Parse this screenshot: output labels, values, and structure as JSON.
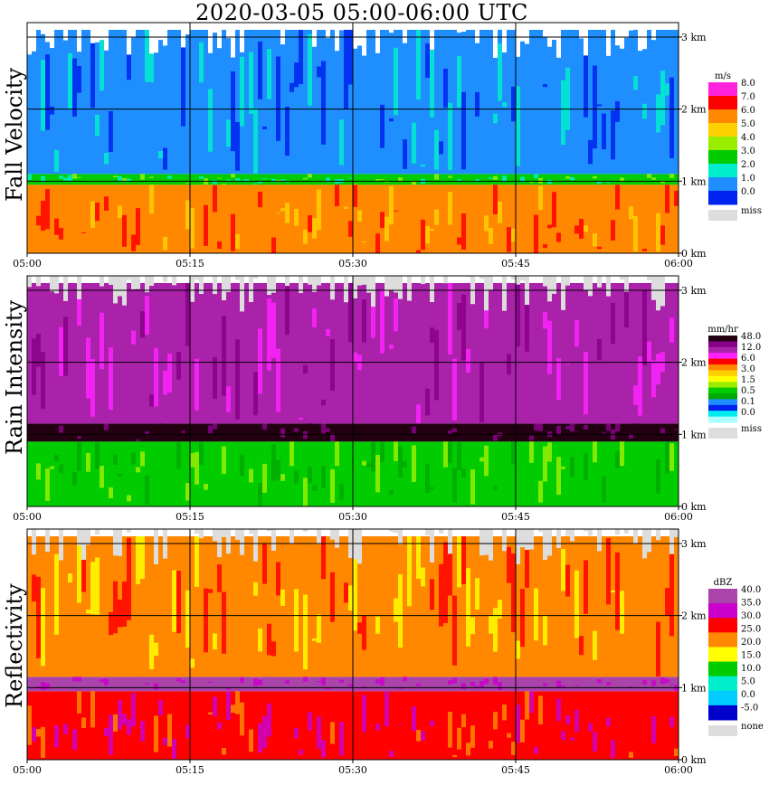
{
  "title": "2020-03-05   05:00-06:00 UTC",
  "chart_data": [
    {
      "type": "heatmap",
      "ylabel": "Fall Velocity",
      "x_ticks": [
        "05:00",
        "05:15",
        "05:30",
        "05:45",
        "06:00"
      ],
      "y_ticks": [
        "0 km",
        "1 km",
        "2 km",
        "3 km"
      ],
      "legend_unit": "m/s",
      "legend_labels": [
        "8.0",
        "7.0",
        "6.0",
        "5.0",
        "4.0",
        "3.0",
        "2.0",
        "1.0",
        "0.0",
        "miss"
      ],
      "legend_colors": [
        "#ff22dd",
        "#ff0000",
        "#ff8800",
        "#ffd000",
        "#99ee00",
        "#00cc00",
        "#00eecc",
        "#1f8fff",
        "#0022ee",
        "#dddddd"
      ],
      "layers": [
        {
          "from_km": 0.0,
          "to_km": 0.95,
          "class": "6.0-7.0",
          "color": "#ff8800"
        },
        {
          "from_km": 0.95,
          "to_km": 1.1,
          "class": "3.0-5.0",
          "color": "#00cc00"
        },
        {
          "from_km": 1.1,
          "to_km": 3.1,
          "class": "1.0-2.0",
          "color": "#1f8fff"
        }
      ]
    },
    {
      "type": "heatmap",
      "ylabel": "Rain Intensity",
      "x_ticks": [
        "05:00",
        "05:15",
        "05:30",
        "05:45",
        "06:00"
      ],
      "y_ticks": [
        "0 km",
        "1 km",
        "2 km",
        "3 km"
      ],
      "legend_unit": "mm/hr",
      "legend_labels": [
        "48.0",
        "12.0",
        "6.0",
        "3.0",
        "1.5",
        "0.5",
        "0.1",
        "0.0",
        "miss"
      ],
      "legend_colors": [
        "#220011",
        "#880088",
        "#aa22aa",
        "#ff22ff",
        "#ff0000",
        "#ff8800",
        "#ffd000",
        "#ffff00",
        "#99ee00",
        "#00cc00",
        "#00aa00",
        "#1f8fff",
        "#0022ee",
        "#00eeee",
        "#aaffff",
        "#dddddd"
      ],
      "layers": [
        {
          "from_km": 0.0,
          "to_km": 0.9,
          "class": "1.5-3.0",
          "color": "#00cc00"
        },
        {
          "from_km": 0.9,
          "to_km": 1.15,
          "class": "48.0",
          "color": "#220011"
        },
        {
          "from_km": 1.15,
          "to_km": 3.1,
          "class": "6.0-12.0",
          "color": "#aa22aa"
        }
      ]
    },
    {
      "type": "heatmap",
      "ylabel": "Reflectivity",
      "x_ticks": [
        "05:00",
        "05:15",
        "05:30",
        "05:45",
        "06:00"
      ],
      "y_ticks": [
        "0 km",
        "1 km",
        "2 km",
        "3 km"
      ],
      "legend_unit": "dBZ",
      "legend_labels": [
        "40.0",
        "35.0",
        "30.0",
        "25.0",
        "20.0",
        "15.0",
        "10.0",
        "5.0",
        "0.0",
        "-5.0",
        "none"
      ],
      "legend_colors": [
        "#aa44aa",
        "#cc00cc",
        "#ff0000",
        "#ff8800",
        "#ffff00",
        "#00cc00",
        "#00eecc",
        "#00ccff",
        "#0000cc",
        "#dddddd"
      ],
      "layers": [
        {
          "from_km": 0.0,
          "to_km": 0.95,
          "class": "30.0-35.0",
          "color": "#ff0000"
        },
        {
          "from_km": 0.95,
          "to_km": 1.15,
          "class": "35.0-40.0",
          "color": "#aa44aa"
        },
        {
          "from_km": 1.15,
          "to_km": 3.1,
          "class": "25.0-30.0",
          "color": "#ff8800"
        }
      ]
    }
  ]
}
